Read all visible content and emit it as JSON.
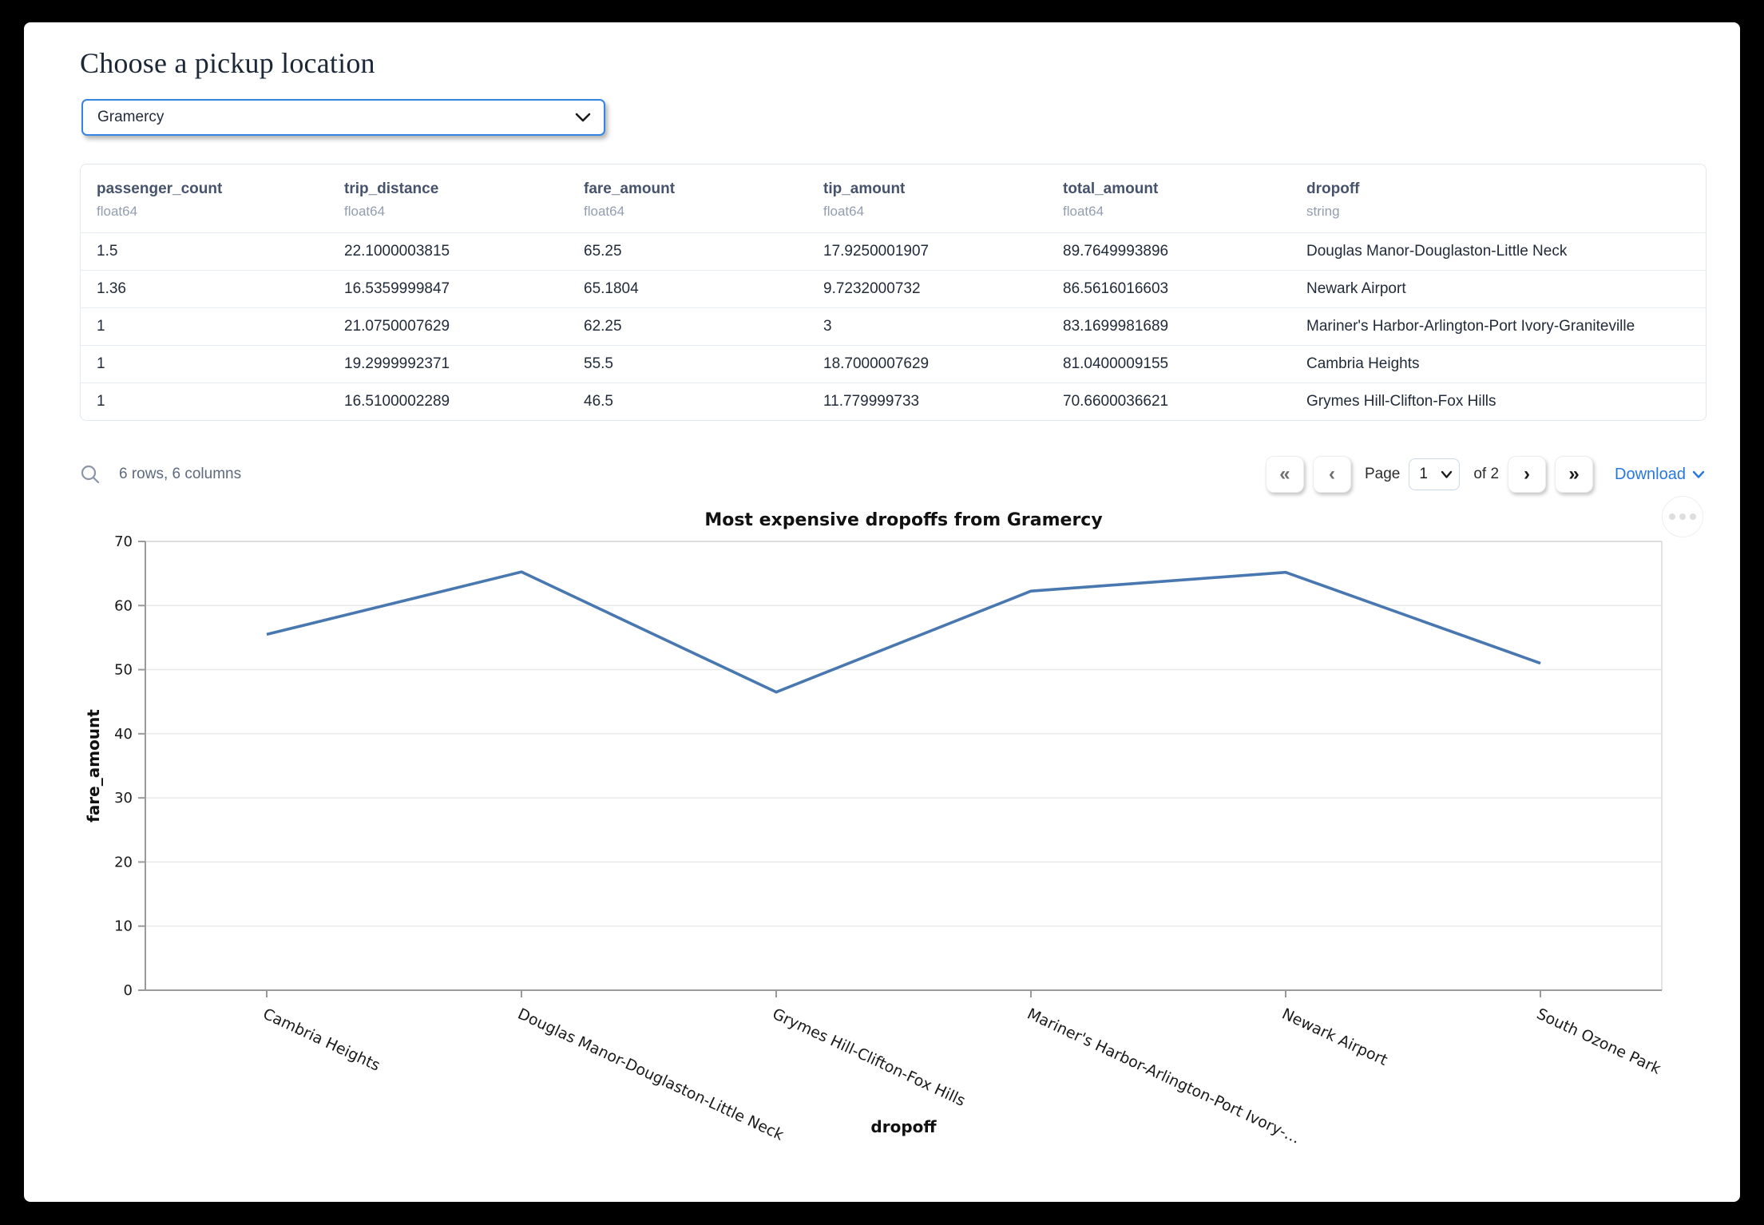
{
  "page": {
    "title": "Choose a pickup location"
  },
  "pickup_select": {
    "value": "Gramercy"
  },
  "table": {
    "columns": [
      {
        "name": "passenger_count",
        "type": "float64"
      },
      {
        "name": "trip_distance",
        "type": "float64"
      },
      {
        "name": "fare_amount",
        "type": "float64"
      },
      {
        "name": "tip_amount",
        "type": "float64"
      },
      {
        "name": "total_amount",
        "type": "float64"
      },
      {
        "name": "dropoff",
        "type": "string"
      }
    ],
    "rows": [
      [
        "1.5",
        "22.1000003815",
        "65.25",
        "17.9250001907",
        "89.7649993896",
        "Douglas Manor-Douglaston-Little Neck"
      ],
      [
        "1.36",
        "16.5359999847",
        "65.1804",
        "9.7232000732",
        "86.5616016603",
        "Newark Airport"
      ],
      [
        "1",
        "21.0750007629",
        "62.25",
        "3",
        "83.1699981689",
        "Mariner's Harbor-Arlington-Port Ivory-Graniteville"
      ],
      [
        "1",
        "19.2999992371",
        "55.5",
        "18.7000007629",
        "81.0400009155",
        "Cambria Heights"
      ],
      [
        "1",
        "16.5100002289",
        "46.5",
        "11.779999733",
        "70.6600036621",
        "Grymes Hill-Clifton-Fox Hills"
      ]
    ],
    "summary": "6 rows, 6 columns",
    "pagination": {
      "first_icon": "«",
      "prev_icon": "‹",
      "page_label": "Page",
      "current_page": "1",
      "of_label": "of 2",
      "next_icon": "›",
      "last_icon": "»",
      "download_label": "Download"
    }
  },
  "chart_data": {
    "type": "line",
    "title": "Most expensive dropoffs from Gramercy",
    "xlabel": "dropoff",
    "ylabel": "fare_amount",
    "categories": [
      "Cambria Heights",
      "Douglas Manor-Douglaston-Little Neck",
      "Grymes Hill-Clifton-Fox Hills",
      "Mariner's Harbor-Arlington-Port Ivory-…",
      "Newark Airport",
      "South Ozone Park"
    ],
    "values": [
      55.5,
      65.25,
      46.5,
      62.25,
      65.1804,
      51
    ],
    "ylim": [
      0,
      70
    ],
    "yticks": [
      0,
      10,
      20,
      30,
      40,
      50,
      60,
      70
    ],
    "grid": true,
    "legend": "none",
    "line_color": "#4878af"
  }
}
